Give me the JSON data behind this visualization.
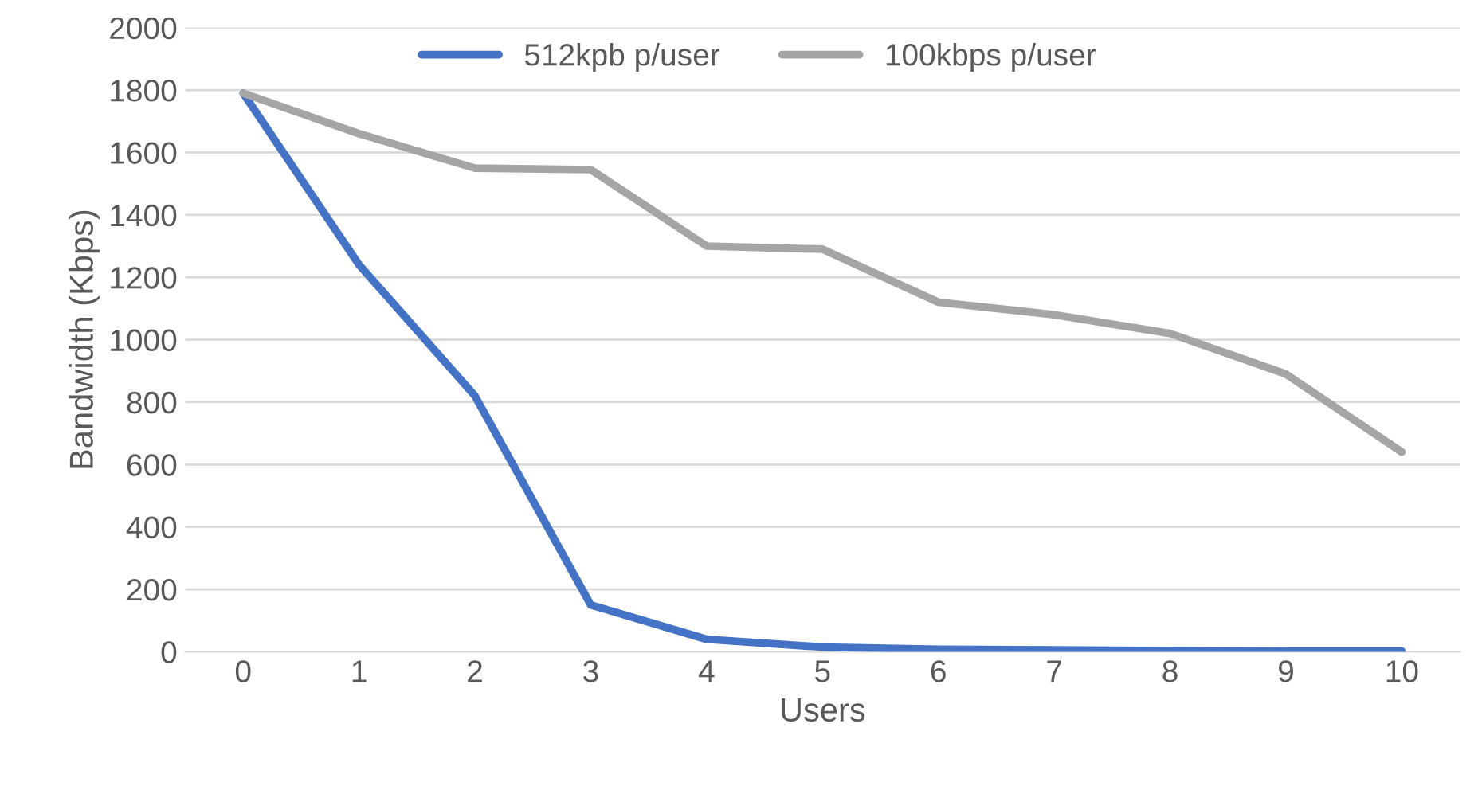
{
  "chart_data": {
    "type": "line",
    "xlabel": "Users",
    "ylabel": "Bandwidth (Kbps)",
    "categories": [
      "0",
      "1",
      "2",
      "3",
      "4",
      "5",
      "6",
      "7",
      "8",
      "9",
      "10"
    ],
    "series": [
      {
        "name": "512kpb p/user",
        "color": "#4472c4",
        "values": [
          1790,
          1240,
          820,
          150,
          40,
          15,
          8,
          6,
          3,
          2,
          2
        ]
      },
      {
        "name": "100kbps p/user",
        "color": "#a5a5a5",
        "values": [
          1790,
          1660,
          1550,
          1545,
          1300,
          1290,
          1120,
          1080,
          1020,
          890,
          640
        ]
      }
    ],
    "ylim": [
      0,
      2000
    ],
    "yticks": [
      0,
      200,
      400,
      600,
      800,
      1000,
      1200,
      1400,
      1600,
      1800,
      2000
    ],
    "grid": "y",
    "legend": "top",
    "marker": "none",
    "line_style": "solid"
  }
}
